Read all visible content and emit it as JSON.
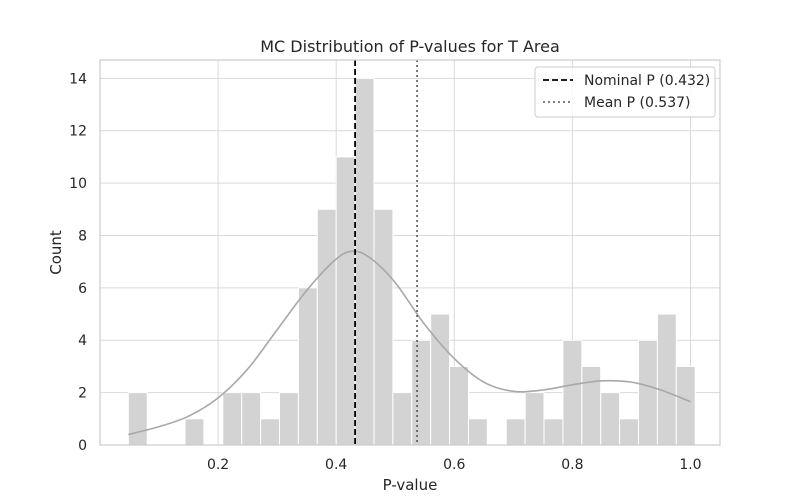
{
  "chart_data": {
    "type": "bar",
    "title": "MC Distribution of P-values for T Area",
    "xlabel": "P-value",
    "ylabel": "Count",
    "xlim": [
      0.0,
      1.05
    ],
    "ylim": [
      0,
      14.7
    ],
    "xticks": [
      0.2,
      0.4,
      0.6,
      0.8,
      1.0
    ],
    "xtick_labels": [
      "0.2",
      "0.4",
      "0.6",
      "0.8",
      "1.0"
    ],
    "yticks": [
      0,
      2,
      4,
      6,
      8,
      10,
      12,
      14
    ],
    "ytick_labels": [
      "0",
      "2",
      "4",
      "6",
      "8",
      "10",
      "12",
      "14"
    ],
    "grid": true,
    "legend_position": "top-right",
    "bins": [
      {
        "x0": 0.048,
        "x1": 0.08,
        "count": 2
      },
      {
        "x0": 0.08,
        "x1": 0.112,
        "count": 0
      },
      {
        "x0": 0.112,
        "x1": 0.144,
        "count": 0
      },
      {
        "x0": 0.144,
        "x1": 0.176,
        "count": 1
      },
      {
        "x0": 0.176,
        "x1": 0.208,
        "count": 0
      },
      {
        "x0": 0.208,
        "x1": 0.24,
        "count": 2
      },
      {
        "x0": 0.24,
        "x1": 0.272,
        "count": 2
      },
      {
        "x0": 0.272,
        "x1": 0.304,
        "count": 1
      },
      {
        "x0": 0.304,
        "x1": 0.336,
        "count": 2
      },
      {
        "x0": 0.336,
        "x1": 0.368,
        "count": 6
      },
      {
        "x0": 0.368,
        "x1": 0.4,
        "count": 9
      },
      {
        "x0": 0.4,
        "x1": 0.432,
        "count": 11
      },
      {
        "x0": 0.432,
        "x1": 0.464,
        "count": 14
      },
      {
        "x0": 0.464,
        "x1": 0.496,
        "count": 9
      },
      {
        "x0": 0.496,
        "x1": 0.528,
        "count": 2
      },
      {
        "x0": 0.528,
        "x1": 0.56,
        "count": 4
      },
      {
        "x0": 0.56,
        "x1": 0.592,
        "count": 5
      },
      {
        "x0": 0.592,
        "x1": 0.624,
        "count": 3
      },
      {
        "x0": 0.624,
        "x1": 0.656,
        "count": 1
      },
      {
        "x0": 0.656,
        "x1": 0.688,
        "count": 0
      },
      {
        "x0": 0.688,
        "x1": 0.72,
        "count": 1
      },
      {
        "x0": 0.72,
        "x1": 0.752,
        "count": 2
      },
      {
        "x0": 0.752,
        "x1": 0.784,
        "count": 1
      },
      {
        "x0": 0.784,
        "x1": 0.816,
        "count": 4
      },
      {
        "x0": 0.816,
        "x1": 0.848,
        "count": 3
      },
      {
        "x0": 0.848,
        "x1": 0.88,
        "count": 2
      },
      {
        "x0": 0.88,
        "x1": 0.912,
        "count": 1
      },
      {
        "x0": 0.912,
        "x1": 0.944,
        "count": 4
      },
      {
        "x0": 0.944,
        "x1": 0.976,
        "count": 5
      },
      {
        "x0": 0.976,
        "x1": 1.008,
        "count": 3
      }
    ],
    "kde": {
      "x": [
        0.048,
        0.1,
        0.15,
        0.2,
        0.25,
        0.3,
        0.35,
        0.4,
        0.43,
        0.46,
        0.5,
        0.55,
        0.6,
        0.65,
        0.7,
        0.75,
        0.8,
        0.85,
        0.9,
        0.95,
        1.0
      ],
      "y": [
        0.4,
        0.7,
        1.1,
        1.8,
        2.9,
        4.4,
        5.9,
        7.1,
        7.4,
        7.1,
        6.2,
        4.6,
        3.3,
        2.4,
        2.05,
        2.1,
        2.3,
        2.45,
        2.4,
        2.1,
        1.65
      ]
    },
    "vlines": [
      {
        "label": "Nominal P (0.432)",
        "x": 0.432,
        "style": "dashed",
        "color": "#000000"
      },
      {
        "label": "Mean P (0.537)",
        "x": 0.537,
        "style": "dotted",
        "color": "#555555"
      }
    ],
    "colors": {
      "bar_fill": "#d3d3d3",
      "bar_edge": "#ffffff",
      "kde_line": "#a8a8a8",
      "grid": "#d9d9d9",
      "axis_edge": "#cccccc"
    }
  }
}
